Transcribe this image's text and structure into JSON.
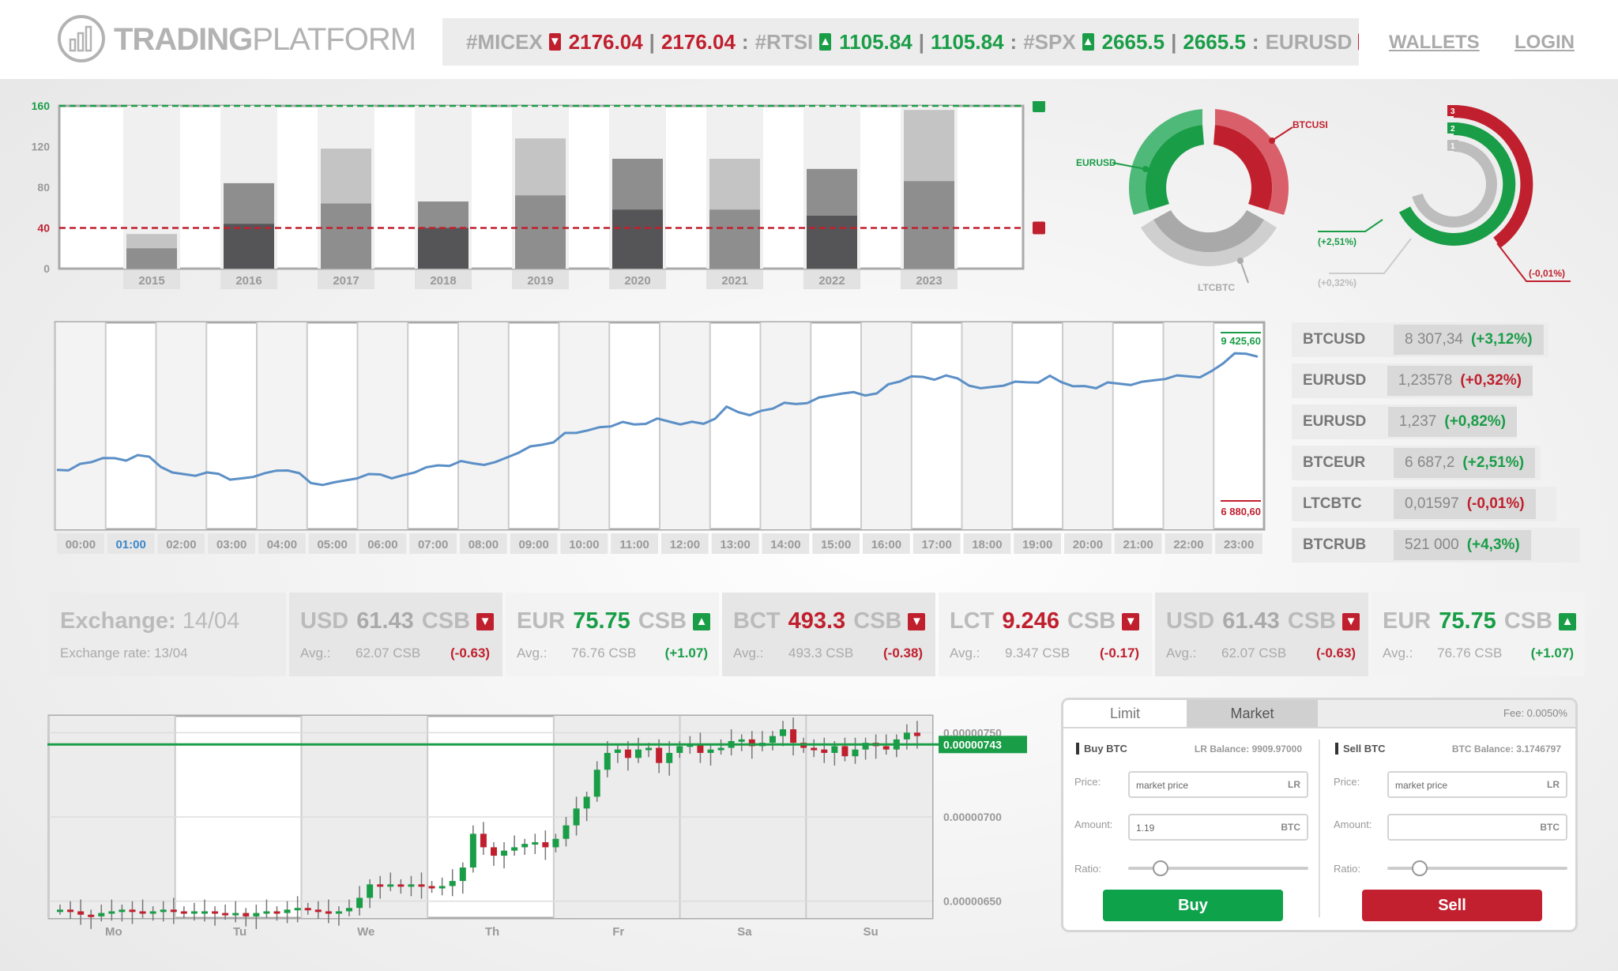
{
  "logo": {
    "brand_bold": "TRADING",
    "brand_thin": "PLATFORM"
  },
  "ticker": [
    {
      "sym": "#MICEX",
      "dir": "down",
      "a": "2176.04",
      "b": "2176.04",
      "color": "red"
    },
    {
      "sym": "#RTSI",
      "dir": "up",
      "a": "1105.84",
      "b": "1105.84",
      "color": "green"
    },
    {
      "sym": "#SPX",
      "dir": "up",
      "a": "2665.5",
      "b": "2665.5",
      "color": "green"
    },
    {
      "sym": "EURUSD",
      "dir": "down",
      "a": "",
      "b": "",
      "color": "red"
    }
  ],
  "nav": {
    "wallets": "WALLETS",
    "login": "LOGIN"
  },
  "bar_chart": {
    "type": "bar",
    "categories": [
      "2015",
      "2016",
      "2017",
      "2018",
      "2019",
      "2020",
      "2021",
      "2022",
      "2023"
    ],
    "series": [
      {
        "values": [
          20,
          44,
          64,
          40,
          72,
          58,
          58,
          52,
          86
        ]
      },
      {
        "values": [
          34,
          84,
          118,
          66,
          128,
          108,
          108,
          98,
          156
        ]
      }
    ],
    "ylim": [
      0,
      160
    ],
    "yticks": [
      "0",
      "40",
      "80",
      "120",
      "160"
    ],
    "ytick_values": [
      0,
      40,
      80,
      120,
      160
    ],
    "upper_line": 160,
    "lower_line": 40,
    "colors": {
      "dark": "#555557",
      "mid": "#8e8e8e",
      "light": "#c4c4c4",
      "green": "#1a9d47",
      "red": "#c0202e"
    }
  },
  "donut1": {
    "labels": {
      "left": "EURUSD",
      "right": "BTCUSD",
      "bottom": "LTCBTC"
    }
  },
  "donut2": {
    "labels": {
      "left": "(+2,51%)",
      "bottom": "(+0,32%)",
      "right": "(-0,01%)"
    },
    "ring_numbers": [
      "3",
      "2",
      "1"
    ]
  },
  "line_chart": {
    "type": "line",
    "x_labels": [
      "00:00",
      "01:00",
      "02:00",
      "03:00",
      "04:00",
      "05:00",
      "06:00",
      "07:00",
      "08:00",
      "09:00",
      "10:00",
      "11:00",
      "12:00",
      "13:00",
      "14:00",
      "15:00",
      "16:00",
      "17:00",
      "18:00",
      "19:00",
      "20:00",
      "21:00",
      "22:00",
      "23:00"
    ],
    "selected_label": "01:00",
    "high_label": "9 425,60",
    "low_label": "6 880,60",
    "values": [
      7520,
      7610,
      7700,
      7660,
      7720,
      7480,
      7430,
      7460,
      7390,
      7470,
      7510,
      7320,
      7330,
      7390,
      7450,
      7440,
      7560,
      7580,
      7620,
      7640,
      7780,
      7900,
      8080,
      8120,
      8180,
      8210,
      8300,
      8210,
      8220,
      8480,
      8350,
      8450,
      8520,
      8620,
      8680,
      8650,
      8820,
      8940,
      8890,
      8910,
      8760,
      8800,
      8850,
      8950,
      8790,
      8760,
      8830,
      8860,
      8900,
      8940,
      9020,
      9290,
      9240
    ]
  },
  "pairs": [
    {
      "name": "BTCUSD",
      "price": "8 307,34",
      "change": "(+3,12%)",
      "color": "green"
    },
    {
      "name": "EURUSD",
      "price": "1,23578",
      "change": "(+0,32%)",
      "color": "red"
    },
    {
      "name": "EURUSD",
      "price": "1,237",
      "change": "(+0,82%)",
      "color": "green"
    },
    {
      "name": "BTCEUR",
      "price": "6 687,2",
      "change": "(+2,51%)",
      "color": "green"
    },
    {
      "name": "LTCBTC",
      "price": "0,01597",
      "change": "(-0,01%)",
      "color": "red"
    },
    {
      "name": "BTCRUB",
      "price": "521 000",
      "change": "(+4,3%)",
      "color": "green"
    }
  ],
  "exchange": {
    "title": "Exchange:",
    "date": "14/04",
    "subtitle": "Exchange rate: 13/04",
    "cells": [
      {
        "cur": "USD",
        "val": "61.43",
        "unit": "CSB",
        "dir": "down",
        "avg_label": "Avg.:",
        "avg": "62.07 CSB",
        "chg": "(-0.63)",
        "color": "grey",
        "chg_color": "red"
      },
      {
        "cur": "EUR",
        "val": "75.75",
        "unit": "CSB",
        "dir": "up",
        "avg_label": "Avg.:",
        "avg": "76.76 CSB",
        "chg": "(+1.07)",
        "color": "green",
        "chg_color": "green"
      },
      {
        "cur": "BCT",
        "val": "493.3",
        "unit": "CSB",
        "dir": "down",
        "avg_label": "Avg.:",
        "avg": "493.3 CSB",
        "chg": "(-0.38)",
        "color": "red",
        "chg_color": "red"
      },
      {
        "cur": "LCT",
        "val": "9.246",
        "unit": "CSB",
        "dir": "down",
        "avg_label": "Avg.:",
        "avg": "9.347 CSB",
        "chg": "(-0.17)",
        "color": "red",
        "chg_color": "red"
      },
      {
        "cur": "USD",
        "val": "61.43",
        "unit": "CSB",
        "dir": "down",
        "avg_label": "Avg.:",
        "avg": "62.07 CSB",
        "chg": "(-0.63)",
        "color": "grey",
        "chg_color": "red"
      },
      {
        "cur": "EUR",
        "val": "75.75",
        "unit": "CSB",
        "dir": "up",
        "avg_label": "Avg.:",
        "avg": "76.76 CSB",
        "chg": "(+1.07)",
        "color": "green",
        "chg_color": "green"
      }
    ]
  },
  "candle_chart": {
    "type": "candlestick",
    "x_labels": [
      "Mo",
      "Tu",
      "We",
      "Th",
      "Fr",
      "Sa",
      "Su"
    ],
    "y_labels": [
      "0.00000750",
      "0.00000700",
      "0.00000650"
    ],
    "y_label_values": [
      750,
      700,
      650
    ],
    "current_value": 743,
    "current_label": "0.00000743",
    "ylim": [
      640,
      760
    ],
    "closes": [
      645,
      644,
      642,
      641,
      643,
      644,
      645,
      644,
      643,
      644,
      645,
      644,
      643,
      644,
      644,
      643,
      642,
      643,
      641,
      643,
      644,
      643,
      645,
      646,
      645,
      644,
      643,
      644,
      646,
      652,
      660,
      659,
      660,
      659,
      660,
      659,
      658,
      659,
      662,
      670,
      690,
      682,
      677,
      680,
      682,
      684,
      685,
      682,
      687,
      695,
      705,
      712,
      728,
      738,
      740,
      735,
      740,
      741,
      732,
      738,
      742,
      743,
      738,
      740,
      741,
      745,
      746,
      742,
      744,
      748,
      752,
      744,
      741,
      740,
      738,
      742,
      736,
      740,
      744,
      742,
      740,
      746,
      750,
      748
    ]
  },
  "order": {
    "tabs": {
      "limit": "Limit",
      "market": "Market"
    },
    "fee": "Fee: 0.0050%",
    "buy": {
      "title": "Buy BTC",
      "balance": "LR Balance: 9909.97000",
      "price_label": "Price:",
      "price_placeholder": "market price",
      "price_unit": "LR",
      "amount_label": "Amount:",
      "amount_value": "1.19",
      "amount_unit": "BTC",
      "ratio_label": "Ratio:",
      "ratio": 0.15,
      "button": "Buy"
    },
    "sell": {
      "title": "Sell BTC",
      "balance": "BTC Balance: 3.1746797",
      "price_label": "Price:",
      "price_placeholder": "market price",
      "price_unit": "LR",
      "amount_label": "Amount:",
      "amount_value": "",
      "amount_unit": "BTC",
      "ratio_label": "Ratio:",
      "ratio": 0.15,
      "button": "Sell"
    }
  }
}
